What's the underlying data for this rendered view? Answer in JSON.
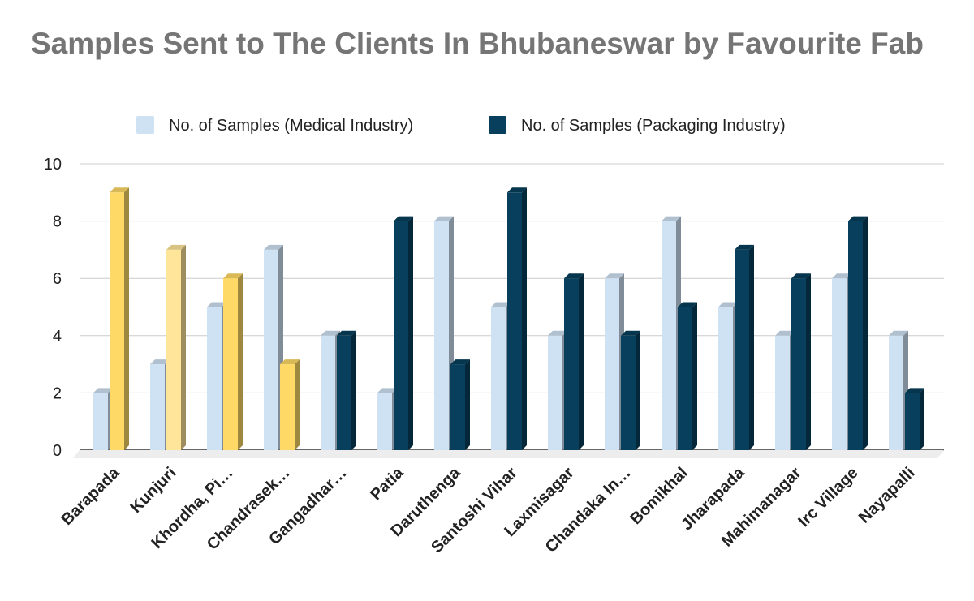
{
  "chart_data": {
    "type": "bar",
    "title": "Samples Sent to The Clients In Bhubaneswar by Favourite Fab",
    "xlabel": "",
    "ylabel": "",
    "ylim": [
      0,
      10
    ],
    "yticks": [
      "0",
      "2",
      "4",
      "6",
      "8",
      "10"
    ],
    "grid": true,
    "legend_position": "top",
    "three_d": true,
    "categories": [
      "Barapada",
      "Kunjuri",
      "Khordha, Pi…",
      "Chandrasek…",
      "Gangadhar…",
      "Patia",
      "Daruthenga",
      "Santoshi Vihar",
      "Laxmisagar",
      "Chandaka In…",
      "Bomikhal",
      "Jharapada",
      "Mahimanagar",
      "Irc Village",
      "Nayapalli"
    ],
    "series": [
      {
        "name": "No. of Samples (Medical Industry)",
        "color": "#cfe2f3",
        "values": [
          2,
          3,
          5,
          7,
          4,
          2,
          8,
          5,
          4,
          6,
          8,
          5,
          4,
          6,
          4
        ]
      },
      {
        "name": "No. of Samples (Packaging Industry)",
        "color": "#073f5c",
        "values": [
          9,
          7,
          6,
          3,
          4,
          8,
          3,
          9,
          6,
          4,
          5,
          7,
          6,
          8,
          2
        ]
      }
    ],
    "highlight_color": "#ffd966",
    "highlight_color_light": "#ffe599",
    "highlights": [
      {
        "series": 1,
        "index": 0,
        "color": "#ffd966"
      },
      {
        "series": 1,
        "index": 1,
        "color": "#ffe599"
      },
      {
        "series": 1,
        "index": 2,
        "color": "#ffd966"
      },
      {
        "series": 1,
        "index": 3,
        "color": "#ffd966"
      }
    ]
  }
}
